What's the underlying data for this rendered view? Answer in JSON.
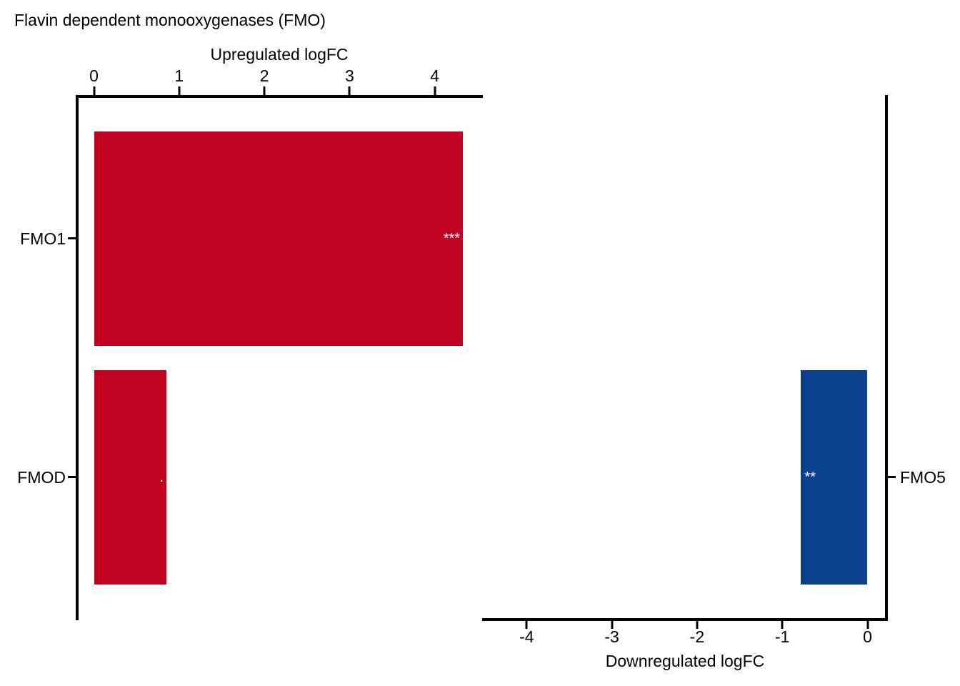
{
  "figure": {
    "title": "Flavin dependent monooxygenases (FMO)"
  },
  "chart_data": {
    "type": "bar",
    "orientation": "horizontal",
    "title": "Flavin dependent monooxygenases (FMO)",
    "axis_color": "#000000",
    "sig_color": "#FFFFFF",
    "panels": [
      {
        "name": "upregulated",
        "axis_label": "Upregulated logFC",
        "axis_position": "top",
        "bar_color": "#C10220",
        "ticks": [
          0,
          1,
          2,
          3,
          4
        ],
        "xlim": [
          0,
          4.56
        ],
        "bars": [
          {
            "gene": "FMO1",
            "logFC": 4.33,
            "significance": "***"
          },
          {
            "gene": "FMOD",
            "logFC": 0.85,
            "significance": "."
          }
        ]
      },
      {
        "name": "downregulated",
        "axis_label": "Downregulated logFC",
        "axis_position": "bottom",
        "bar_color": "#0B408E",
        "ticks": [
          -4,
          -3,
          -2,
          -1,
          0
        ],
        "xlim": [
          -4.52,
          0
        ],
        "bars": [
          {
            "gene": "FMO5",
            "logFC": -0.78,
            "significance": "**"
          }
        ]
      }
    ]
  }
}
